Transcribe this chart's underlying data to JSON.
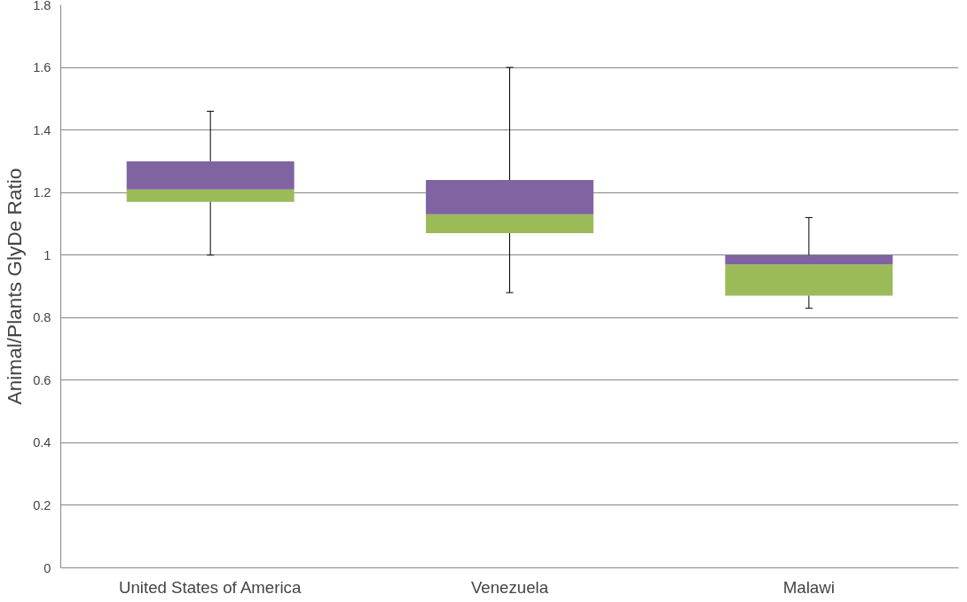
{
  "chart_data": {
    "type": "box",
    "ylabel": "Animal/Plants GlyDe Ratio",
    "categories": [
      "United States of America",
      "Venezuela",
      "Malawi"
    ],
    "colors": [
      [
        "#9bbb59",
        "#8064a2"
      ],
      [
        "#9bbb59",
        "#8064a2"
      ],
      [
        "#9bbb59",
        "#8064a2"
      ]
    ],
    "boxes": [
      {
        "low": 1.0,
        "q1": 1.17,
        "median": 1.21,
        "q3": 1.3,
        "high": 1.46
      },
      {
        "low": 0.88,
        "q1": 1.07,
        "median": 1.13,
        "q3": 1.24,
        "high": 1.6
      },
      {
        "low": 0.83,
        "q1": 0.87,
        "median": 0.97,
        "q3": 1.0,
        "high": 1.12
      }
    ],
    "ylim": [
      0,
      1.8
    ],
    "yticks": [
      0,
      0.2,
      0.4,
      0.6,
      0.8,
      1,
      1.2,
      1.4,
      1.6,
      1.8
    ],
    "grid": "y"
  }
}
